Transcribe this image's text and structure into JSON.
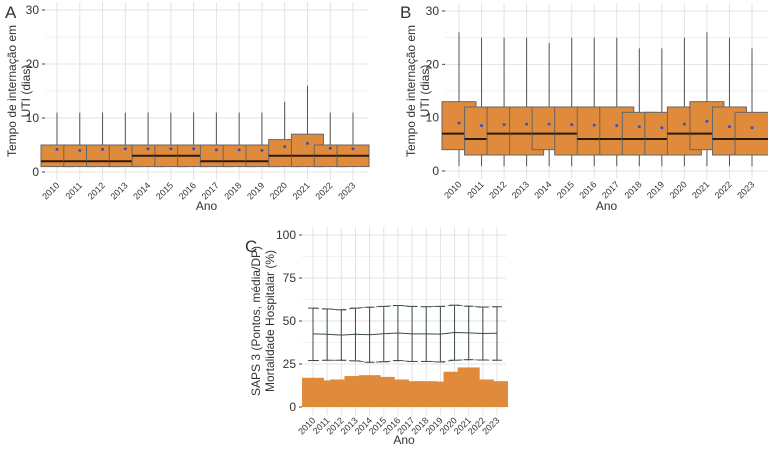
{
  "chart_data": [
    {
      "panel": "A",
      "type": "box",
      "ylabel": "Tempo de internação em UTI (dias)",
      "ylabel_lines": [
        "Tempo de internação em",
        "UTI (dias)"
      ],
      "xlabel": "Ano",
      "ylim": [
        0,
        30
      ],
      "yticks": [
        0,
        10,
        20,
        30
      ],
      "categories": [
        "2010",
        "2011",
        "2012",
        "2013",
        "2014",
        "2015",
        "2016",
        "2017",
        "2018",
        "2019",
        "2020",
        "2021",
        "2022",
        "2023"
      ],
      "q1": [
        1,
        1,
        1,
        1,
        1,
        1,
        1,
        1,
        1,
        1,
        1,
        1,
        1,
        1
      ],
      "median": [
        2,
        2,
        2,
        2,
        3,
        3,
        3,
        2,
        2,
        2,
        3,
        3,
        3,
        3
      ],
      "q3": [
        5,
        5,
        5,
        5,
        5,
        5,
        5,
        5,
        5,
        5,
        6,
        7,
        5,
        5
      ],
      "whisker_low": [
        1,
        1,
        1,
        1,
        1,
        1,
        1,
        1,
        1,
        1,
        1,
        1,
        1,
        1
      ],
      "whisker_high": [
        11,
        11,
        11,
        11,
        11,
        11,
        11,
        11,
        11,
        11,
        13,
        16,
        11,
        11
      ],
      "mean": [
        4.2,
        4.0,
        4.2,
        4.3,
        4.3,
        4.3,
        4.3,
        4.1,
        4.1,
        4.0,
        4.7,
        5.3,
        4.4,
        4.3
      ]
    },
    {
      "panel": "B",
      "type": "box",
      "ylabel": "Tempo de internação em UTI (dias)",
      "ylabel_lines": [
        "Tempo de internação em",
        "UTI (dias)"
      ],
      "xlabel": "Ano",
      "ylim": [
        0,
        30
      ],
      "yticks": [
        0,
        10,
        20,
        30
      ],
      "categories": [
        "2010",
        "2011",
        "2012",
        "2013",
        "2014",
        "2015",
        "2016",
        "2017",
        "2018",
        "2019",
        "2020",
        "2021",
        "2022",
        "2023"
      ],
      "q1": [
        4,
        3,
        3,
        3,
        4,
        3,
        3,
        3,
        3,
        3,
        3,
        4,
        3,
        3
      ],
      "median": [
        7,
        6,
        7,
        7,
        7,
        7,
        6,
        6,
        6,
        6,
        7,
        7,
        6,
        6
      ],
      "q3": [
        13,
        12,
        12,
        12,
        12,
        12,
        12,
        12,
        11,
        11,
        12,
        13,
        12,
        11
      ],
      "whisker_low": [
        1,
        1,
        1,
        1,
        1,
        1,
        1,
        1,
        1,
        1,
        1,
        1,
        1,
        1
      ],
      "whisker_high": [
        26,
        25,
        25,
        25,
        24,
        25,
        25,
        25,
        23,
        23,
        25,
        26,
        25,
        23
      ],
      "mean": [
        9.0,
        8.5,
        8.7,
        8.8,
        8.8,
        8.7,
        8.6,
        8.5,
        8.3,
        8.1,
        8.8,
        9.3,
        8.3,
        8.1
      ]
    },
    {
      "panel": "C",
      "type": "bar+errorline",
      "ylabel": "SAPS 3 (Pontos, média/DP) Mortalidade Hospitalar (%)",
      "ylabel_lines": [
        "SAPS 3 (Pontos, média/DP)",
        "Mortalidade Hospitalar (%)"
      ],
      "xlabel": "Ano",
      "ylim": [
        0,
        100
      ],
      "yticks": [
        0,
        25,
        50,
        75,
        100
      ],
      "categories": [
        "2010",
        "2011",
        "2012",
        "2013",
        "2014",
        "2015",
        "2016",
        "2017",
        "2018",
        "2019",
        "2020",
        "2021",
        "2022",
        "2023"
      ],
      "series": [
        {
          "name": "Mortalidade Hospitalar (%)",
          "type": "bar",
          "values": [
            17,
            15.5,
            16,
            18,
            18.5,
            17.5,
            16,
            15,
            15,
            14.8,
            20.5,
            23,
            16,
            15
          ]
        },
        {
          "name": "SAPS 3 média",
          "type": "line",
          "values": [
            42.5,
            42.3,
            41.8,
            42.3,
            42,
            42.6,
            43,
            42.5,
            42.5,
            42.4,
            43.3,
            43.1,
            42.7,
            42.9
          ]
        },
        {
          "name": "SAPS 3 DP superior",
          "type": "line",
          "values": [
            57.5,
            57,
            56.5,
            57.5,
            58,
            58.5,
            59,
            58.5,
            58.3,
            58.5,
            59.2,
            58.6,
            58.1,
            58.3
          ]
        },
        {
          "name": "SAPS 3 DP inferior",
          "type": "line",
          "values": [
            27,
            27.2,
            27.2,
            26.8,
            26,
            26.3,
            27,
            26.5,
            26.5,
            26.2,
            27.2,
            27.5,
            27.3,
            27.2
          ]
        }
      ]
    }
  ],
  "colors": {
    "box": "#e08a3c",
    "mean": "#3b4fc4",
    "grid": "#e3e3e3",
    "line": "#3c4b4b"
  }
}
